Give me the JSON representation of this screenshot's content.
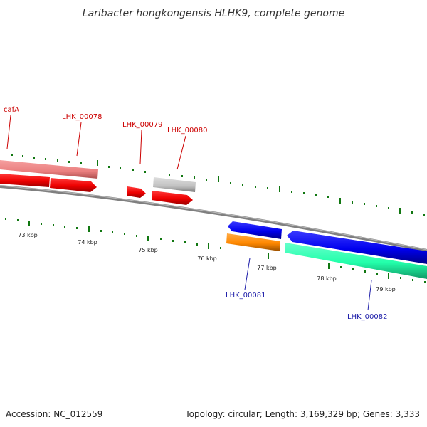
{
  "title": "Laribacter hongkongensis HLHK9, complete genome",
  "footer": {
    "accession": "Accession: NC_012559",
    "topology": "Topology: circular; Length: 3,169,329 bp; Genes: 3,333"
  },
  "colors": {
    "forward_cds": "#ff0000",
    "reverse_cds": "#0000ee",
    "forward_other": "#ee8080",
    "forward_gray": "#c0c0c0",
    "reverse_orange": "#ff8800",
    "reverse_teal": "#22ffaa",
    "tick": "#117711",
    "backbone": "#808080"
  },
  "scale_labels": [
    "73 kbp",
    "74 kbp",
    "75 kbp",
    "76 kbp",
    "77 kbp",
    "78 kbp",
    "79 kbp"
  ],
  "gene_labels": [
    {
      "text": "cafA",
      "strand": "forward"
    },
    {
      "text": "LHK_00078",
      "strand": "forward"
    },
    {
      "text": "LHK_00079",
      "strand": "forward"
    },
    {
      "text": "LHK_00080",
      "strand": "forward"
    },
    {
      "text": "LHK_00081",
      "strand": "reverse"
    },
    {
      "text": "LHK_00082",
      "strand": "reverse"
    }
  ]
}
